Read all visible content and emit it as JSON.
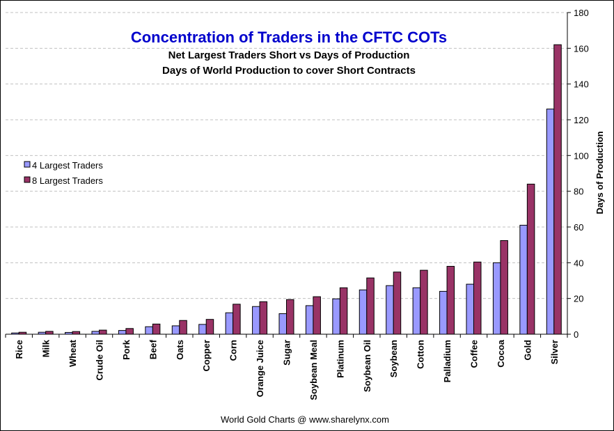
{
  "chart_data": {
    "type": "bar",
    "title": "Concentration of Traders in the CFTC COTs",
    "subtitle_1": "Net Largest Traders Short vs Days of Production",
    "subtitle_2": "Days of World Production to cover Short Contracts",
    "ylabel": "Days of Production",
    "ylim": [
      0,
      180
    ],
    "yticks": [
      0,
      20,
      40,
      60,
      80,
      100,
      120,
      140,
      160,
      180
    ],
    "y_axis_side": "right",
    "grid": "horizontal dashed",
    "legend_position": "left",
    "categories": [
      "Rice",
      "Milk",
      "Wheat",
      "Crude Oil",
      "Pork",
      "Beef",
      "Oats",
      "Copper",
      "Corn",
      "Orange Juice",
      "Sugar",
      "Soybean Meal",
      "Platinum",
      "Soybean Oil",
      "Soybean",
      "Cotton",
      "Palladium",
      "Coffee",
      "Cocoa",
      "Gold",
      "Silver"
    ],
    "series": [
      {
        "name": "4 Largest Traders",
        "color": "#9999ff",
        "values": [
          0.7,
          1.1,
          1.0,
          1.6,
          2.1,
          4.2,
          4.7,
          5.5,
          12.0,
          15.5,
          11.5,
          16.0,
          19.8,
          24.8,
          27.2,
          26.0,
          24.0,
          28.0,
          40.0,
          61.0,
          126.0
        ]
      },
      {
        "name": "8 Largest Traders",
        "color": "#993366",
        "values": [
          1.1,
          1.6,
          1.5,
          2.3,
          3.2,
          5.7,
          7.7,
          8.3,
          16.8,
          18.2,
          19.4,
          21.0,
          26.0,
          31.5,
          34.8,
          35.8,
          38.0,
          40.4,
          52.4,
          84.0,
          162.0
        ]
      }
    ],
    "credit": "World Gold Charts @ www.sharelynx.com"
  },
  "colors": {
    "title": "#0000cc",
    "text": "#000000",
    "grid": "#c0c0c0",
    "bar_outline": "#000000"
  }
}
